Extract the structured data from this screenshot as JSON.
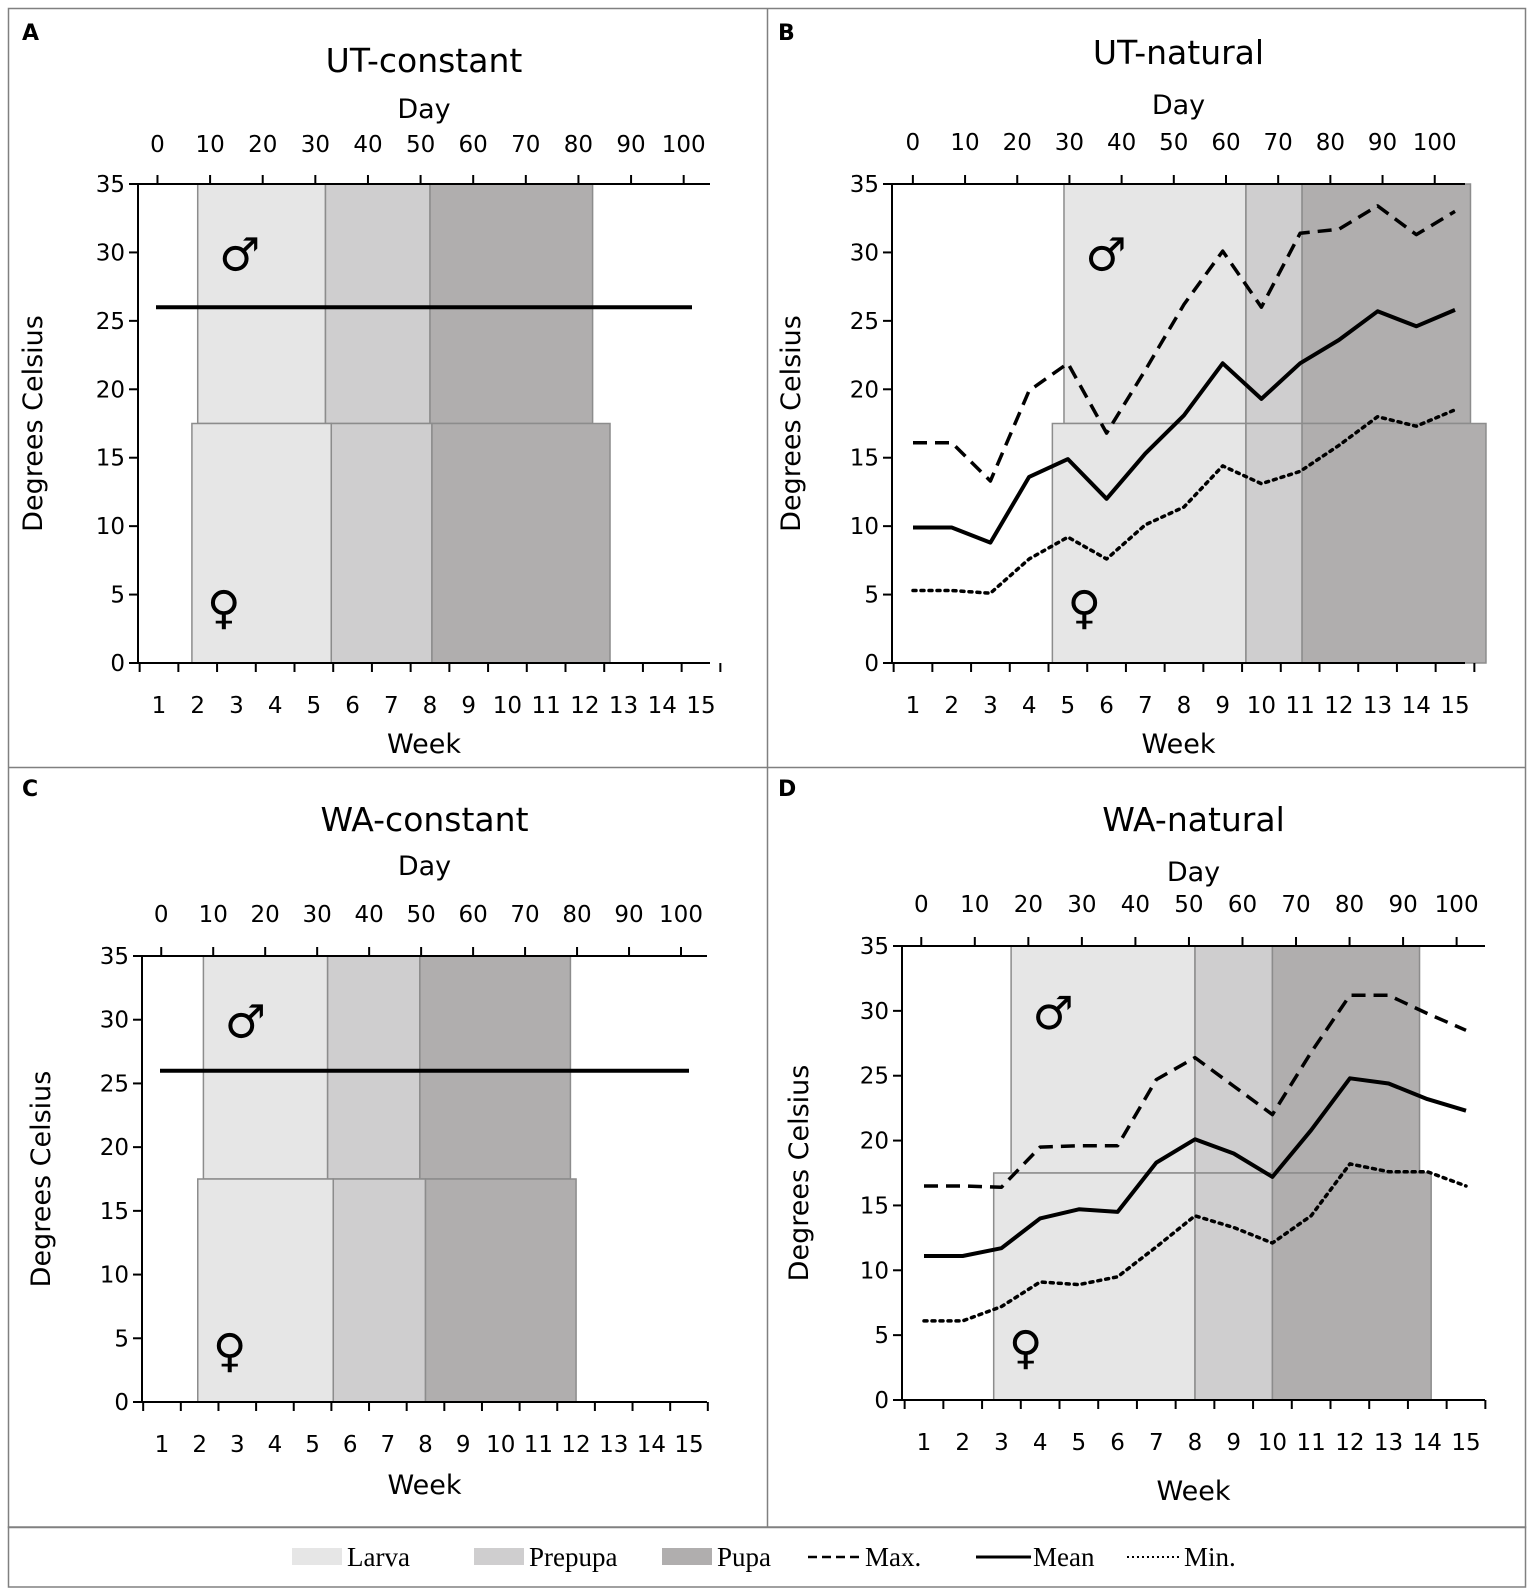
{
  "colors": {
    "larva": "#e6e6e6",
    "prepupa": "#cfcecf",
    "pupa": "#b0aeae",
    "stage_border": "#8c8c8c",
    "line": "#000000",
    "frame": "#808080"
  },
  "legend": {
    "items": [
      {
        "key": "larva",
        "label": "Larva",
        "kind": "swatch"
      },
      {
        "key": "prepupa",
        "label": "Prepupa",
        "kind": "swatch"
      },
      {
        "key": "pupa",
        "label": "Pupa",
        "kind": "swatch"
      },
      {
        "key": "max",
        "label": "Max.",
        "kind": "dashed"
      },
      {
        "key": "mean",
        "label": "Mean",
        "kind": "solid"
      },
      {
        "key": "min",
        "label": "Min.",
        "kind": "dotted"
      }
    ]
  },
  "chart_data": [
    {
      "panel": "A",
      "title": "UT-constant",
      "type": "line",
      "xlabel": "Week",
      "x2label": "Day",
      "ylabel": "Degrees Celsius",
      "ylim": [
        0,
        35
      ],
      "yticks": [
        0,
        5,
        10,
        15,
        20,
        25,
        30,
        35
      ],
      "weeks": [
        "1",
        "2",
        "3",
        "4",
        "5",
        "6",
        "7",
        "8",
        "9",
        "10",
        "11",
        "12",
        "13",
        "14",
        "15"
      ],
      "day_ticks": [
        "0",
        "10",
        "20",
        "30",
        "40",
        "50",
        "60",
        "70",
        "80",
        "90",
        "100"
      ],
      "day_range": [
        -3.7,
        105
      ],
      "male_symbol": "♂",
      "female_symbol": "♀",
      "stages": {
        "male": [
          {
            "stage": "larva",
            "start_week": 2.0,
            "end_week": 5.3
          },
          {
            "stage": "prepupa",
            "start_week": 5.3,
            "end_week": 8.0
          },
          {
            "stage": "pupa",
            "start_week": 8.0,
            "end_week": 12.2
          }
        ],
        "female": [
          {
            "stage": "larva",
            "start_week": 1.85,
            "end_week": 5.45
          },
          {
            "stage": "prepupa",
            "start_week": 5.45,
            "end_week": 8.05
          },
          {
            "stage": "pupa",
            "start_week": 8.05,
            "end_week": 12.65
          }
        ]
      },
      "series": [
        {
          "name": "Mean",
          "style": "solid",
          "x": [
            1,
            15
          ],
          "values": [
            26,
            26
          ]
        }
      ]
    },
    {
      "panel": "B",
      "title": "UT-natural",
      "type": "line",
      "xlabel": "Week",
      "x2label": "Day",
      "ylabel": "Degrees Celsius",
      "ylim": [
        0,
        35
      ],
      "yticks": [
        0,
        5,
        10,
        15,
        20,
        25,
        30,
        35
      ],
      "weeks": [
        "1",
        "2",
        "3",
        "4",
        "5",
        "6",
        "7",
        "8",
        "9",
        "10",
        "11",
        "12",
        "13",
        "14",
        "15"
      ],
      "day_ticks": [
        "0",
        "10",
        "20",
        "30",
        "40",
        "50",
        "60",
        "70",
        "80",
        "90",
        "100"
      ],
      "day_range": [
        -4,
        105.8
      ],
      "male_symbol": "♂",
      "female_symbol": "♀",
      "stages": {
        "male": [
          {
            "stage": "larva",
            "start_week": 4.9,
            "end_week": 9.6
          },
          {
            "stage": "prepupa",
            "start_week": 9.6,
            "end_week": 11.05
          },
          {
            "stage": "pupa",
            "start_week": 11.05,
            "end_week": 15.4
          }
        ],
        "female": [
          {
            "stage": "larva",
            "start_week": 4.6,
            "end_week": 9.6
          },
          {
            "stage": "prepupa",
            "start_week": 9.6,
            "end_week": 11.05
          },
          {
            "stage": "pupa",
            "start_week": 11.05,
            "end_week": 15.8
          }
        ]
      },
      "series": [
        {
          "name": "Max.",
          "style": "dashed",
          "x": [
            1,
            2,
            3,
            4,
            5,
            6,
            7,
            8,
            9,
            10,
            11,
            12,
            13,
            14,
            15
          ],
          "values": [
            16.1,
            16.1,
            13.3,
            19.9,
            21.9,
            16.8,
            21.4,
            26.2,
            30.1,
            26.0,
            31.4,
            31.7,
            33.4,
            31.3,
            33.0
          ]
        },
        {
          "name": "Mean",
          "style": "solid",
          "x": [
            1,
            2,
            3,
            4,
            5,
            6,
            7,
            8,
            9,
            10,
            11,
            12,
            13,
            14,
            15
          ],
          "values": [
            9.9,
            9.9,
            8.8,
            13.6,
            14.9,
            12.0,
            15.3,
            18.1,
            21.9,
            19.3,
            21.9,
            23.6,
            25.7,
            24.6,
            25.8
          ]
        },
        {
          "name": "Min.",
          "style": "dotted",
          "x": [
            1,
            2,
            3,
            4,
            5,
            6,
            7,
            8,
            9,
            10,
            11,
            12,
            13,
            14,
            15
          ],
          "values": [
            5.3,
            5.3,
            5.1,
            7.6,
            9.2,
            7.6,
            10.1,
            11.4,
            14.4,
            13.1,
            14.0,
            15.9,
            18.0,
            17.3,
            18.5
          ]
        }
      ]
    },
    {
      "panel": "C",
      "title": "WA-constant",
      "type": "line",
      "xlabel": "Week",
      "x2label": "Day",
      "ylabel": "Degrees Celsius",
      "ylim": [
        0,
        35
      ],
      "yticks": [
        0,
        5,
        10,
        15,
        20,
        25,
        30,
        35
      ],
      "weeks": [
        "1",
        "2",
        "3",
        "4",
        "5",
        "6",
        "7",
        "8",
        "9",
        "10",
        "11",
        "12",
        "13",
        "14",
        "15"
      ],
      "day_ticks": [
        "0",
        "10",
        "20",
        "30",
        "40",
        "50",
        "60",
        "70",
        "80",
        "90",
        "100"
      ],
      "day_range": [
        -3.7,
        105
      ],
      "male_symbol": "♂",
      "female_symbol": "♀",
      "stages": {
        "male": [
          {
            "stage": "larva",
            "start_week": 2.1,
            "end_week": 5.4
          },
          {
            "stage": "prepupa",
            "start_week": 5.4,
            "end_week": 7.85
          },
          {
            "stage": "pupa",
            "start_week": 7.85,
            "end_week": 11.85
          }
        ],
        "female": [
          {
            "stage": "larva",
            "start_week": 1.95,
            "end_week": 5.55
          },
          {
            "stage": "prepupa",
            "start_week": 5.55,
            "end_week": 8.0
          },
          {
            "stage": "pupa",
            "start_week": 8.0,
            "end_week": 12.0
          }
        ]
      },
      "series": [
        {
          "name": "Mean",
          "style": "solid",
          "x": [
            1,
            15
          ],
          "values": [
            26,
            26
          ]
        }
      ]
    },
    {
      "panel": "D",
      "title": "WA-natural",
      "type": "line",
      "xlabel": "Week",
      "x2label": "Day",
      "ylabel": "Degrees Celsius",
      "ylim": [
        0,
        35
      ],
      "yticks": [
        0,
        5,
        10,
        15,
        20,
        25,
        30,
        35
      ],
      "weeks": [
        "1",
        "2",
        "3",
        "4",
        "5",
        "6",
        "7",
        "8",
        "9",
        "10",
        "11",
        "12",
        "13",
        "14",
        "15"
      ],
      "day_ticks": [
        "0",
        "10",
        "20",
        "30",
        "40",
        "50",
        "60",
        "70",
        "80",
        "90",
        "100"
      ],
      "day_range": [
        -3.6,
        105.3
      ],
      "male_symbol": "♂",
      "female_symbol": "♀",
      "stages": {
        "male": [
          {
            "stage": "larva",
            "start_week": 3.25,
            "end_week": 8.0
          },
          {
            "stage": "prepupa",
            "start_week": 8.0,
            "end_week": 10.0
          },
          {
            "stage": "pupa",
            "start_week": 10.0,
            "end_week": 13.8
          }
        ],
        "female": [
          {
            "stage": "larva",
            "start_week": 2.8,
            "end_week": 8.0
          },
          {
            "stage": "prepupa",
            "start_week": 8.0,
            "end_week": 10.0
          },
          {
            "stage": "pupa",
            "start_week": 10.0,
            "end_week": 14.1
          }
        ]
      },
      "series": [
        {
          "name": "Max.",
          "style": "dashed",
          "x": [
            1,
            2,
            3,
            4,
            5,
            6,
            7,
            8,
            9,
            10,
            11,
            12,
            13,
            14,
            15
          ],
          "values": [
            16.5,
            16.5,
            16.4,
            19.5,
            19.6,
            19.6,
            24.7,
            26.4,
            24.2,
            22.0,
            26.8,
            31.2,
            31.2,
            29.8,
            28.5
          ]
        },
        {
          "name": "Mean",
          "style": "solid",
          "x": [
            1,
            2,
            3,
            4,
            5,
            6,
            7,
            8,
            9,
            10,
            11,
            12,
            13,
            14,
            15
          ],
          "values": [
            11.1,
            11.1,
            11.7,
            14.0,
            14.7,
            14.5,
            18.3,
            20.1,
            19.0,
            17.2,
            20.8,
            24.8,
            24.4,
            23.2,
            22.3
          ]
        },
        {
          "name": "Min.",
          "style": "dotted",
          "x": [
            1,
            2,
            3,
            4,
            5,
            6,
            7,
            8,
            9,
            10,
            11,
            12,
            13,
            14,
            15
          ],
          "values": [
            6.1,
            6.1,
            7.2,
            9.1,
            8.9,
            9.5,
            11.8,
            14.2,
            13.3,
            12.1,
            14.2,
            18.2,
            17.6,
            17.6,
            16.5
          ]
        }
      ]
    }
  ]
}
